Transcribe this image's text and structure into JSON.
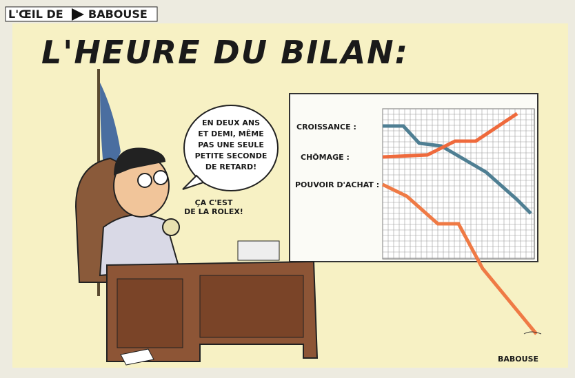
{
  "header": {
    "column": "L'ŒIL DE",
    "author": "BABOUSE"
  },
  "title": "L'HEURE DU BILAN:",
  "speech": {
    "main": [
      "EN DEUX ANS",
      "ET DEMI, MÊME",
      "PAS UNE SEULE",
      "PETITE SECONDE",
      "DE RETARD!"
    ],
    "aside": [
      "ÇA C'EST",
      "DE LA ROLEX!"
    ]
  },
  "board": {
    "labels": [
      "CROISSANCE :",
      "CHÔMAGE :",
      "POUVOIR D'ACHAT :"
    ]
  },
  "signature": "BABOUSE"
}
